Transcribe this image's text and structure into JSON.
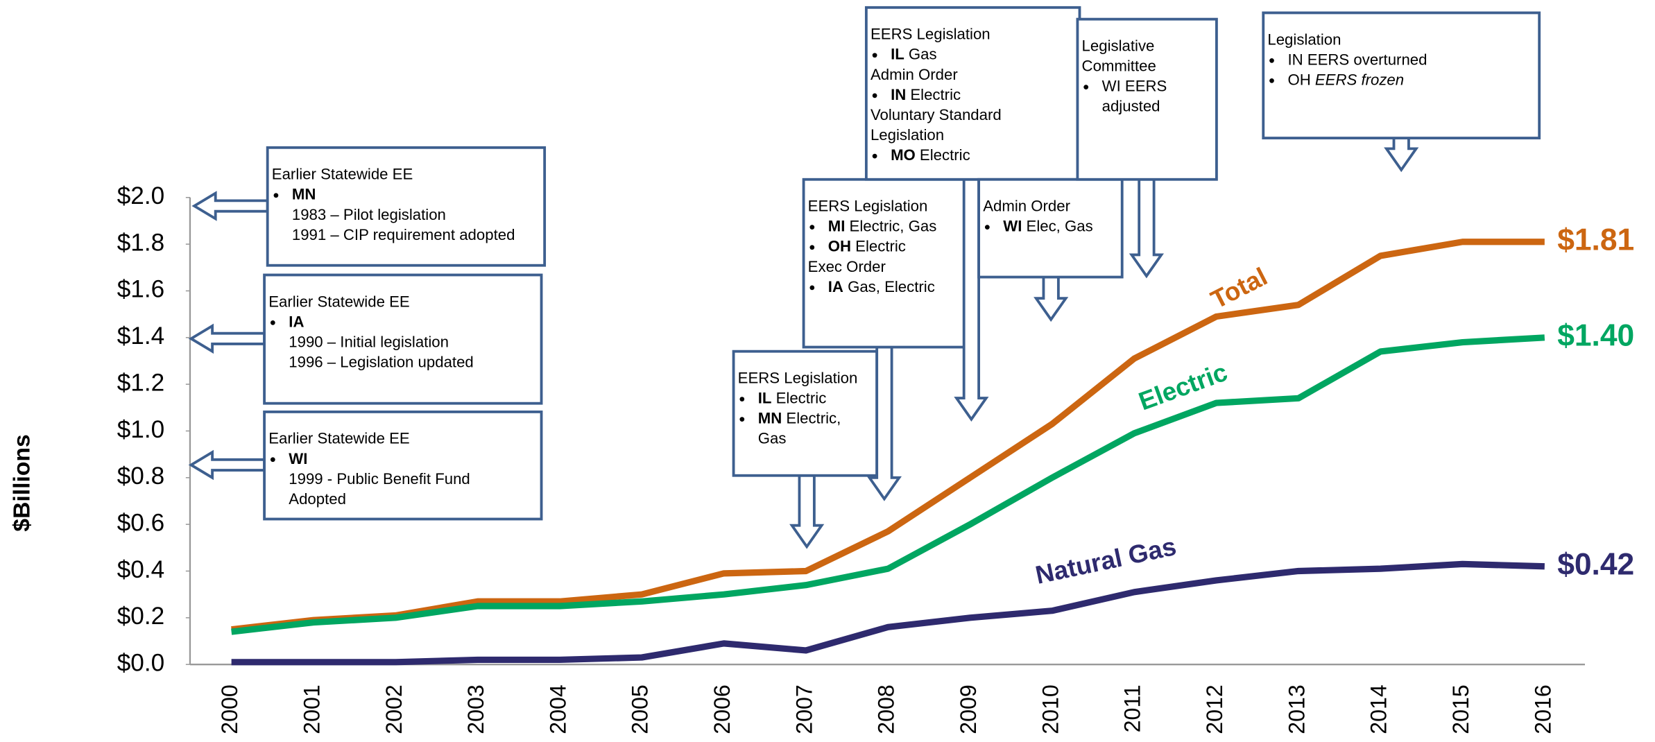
{
  "chart_data": {
    "type": "line",
    "y_label": "$Billions",
    "categories": [
      "2000",
      "2001",
      "2002",
      "2003",
      "2004",
      "2005",
      "2006",
      "2007",
      "2008",
      "2009",
      "2010",
      "2011",
      "2012",
      "2013",
      "2014",
      "2015",
      "2016"
    ],
    "ylim": [
      0,
      2.0
    ],
    "yticks": [
      {
        "value": 0,
        "label": "$0.0"
      },
      {
        "value": 0.2,
        "label": "$0.2"
      },
      {
        "value": 0.4,
        "label": "$0.4"
      },
      {
        "value": 0.6,
        "label": "$0.6"
      },
      {
        "value": 0.8,
        "label": "$0.8"
      },
      {
        "value": 1.0,
        "label": "$1.0"
      },
      {
        "value": 1.2,
        "label": "$1.2"
      },
      {
        "value": 1.4,
        "label": "$1.4"
      },
      {
        "value": 1.6,
        "label": "$1.6"
      },
      {
        "value": 1.8,
        "label": "$1.8"
      },
      {
        "value": 2.0,
        "label": "$2.0"
      }
    ],
    "grid": false,
    "series": [
      {
        "name": "Total",
        "color": "#cc6611",
        "values": [
          0.15,
          0.19,
          0.21,
          0.27,
          0.27,
          0.3,
          0.39,
          0.4,
          0.57,
          0.8,
          1.03,
          1.31,
          1.49,
          1.54,
          1.75,
          1.81,
          1.81
        ],
        "value_labels": [
          null,
          null,
          null,
          null,
          null,
          null,
          null,
          null,
          null,
          null,
          null,
          null,
          null,
          null,
          null,
          null,
          "$1.81"
        ]
      },
      {
        "name": "Electric",
        "color": "#00a661",
        "values": [
          0.14,
          0.18,
          0.2,
          0.25,
          0.25,
          0.27,
          0.3,
          0.34,
          0.41,
          0.6,
          0.8,
          0.99,
          1.12,
          1.14,
          1.34,
          1.38,
          1.4
        ],
        "value_labels": [
          null,
          null,
          null,
          null,
          null,
          null,
          null,
          null,
          null,
          null,
          null,
          null,
          null,
          null,
          null,
          null,
          "$1.40"
        ]
      },
      {
        "name": "Natural Gas",
        "color": "#2e2a6e",
        "values": [
          0.01,
          0.01,
          0.01,
          0.02,
          0.02,
          0.03,
          0.09,
          0.06,
          0.16,
          0.2,
          0.23,
          0.31,
          0.36,
          0.4,
          0.41,
          0.43,
          0.42
        ],
        "value_labels": [
          null,
          null,
          null,
          null,
          null,
          null,
          null,
          null,
          null,
          null,
          null,
          null,
          null,
          null,
          null,
          null,
          "$0.42"
        ]
      }
    ],
    "annotations": [
      {
        "lines": [
          {
            "text": "Earlier Statewide EE"
          },
          {
            "bullet": true,
            "bold": "MN"
          },
          {
            "indent": true,
            "text": "1983 – Pilot legislation"
          },
          {
            "indent": true,
            "text": "1991 – CIP requirement adopted"
          }
        ]
      },
      {
        "lines": [
          {
            "text": "Earlier Statewide EE"
          },
          {
            "bullet": true,
            "bold": "IA"
          },
          {
            "indent": true,
            "text": "1990 – Initial legislation"
          },
          {
            "indent": true,
            "text": "1996 – Legislation updated"
          }
        ]
      },
      {
        "lines": [
          {
            "text": "Earlier Statewide EE"
          },
          {
            "bullet": true,
            "bold": "WI"
          },
          {
            "indent": true,
            "text": "1999 - Public Benefit Fund"
          },
          {
            "indent": true,
            "text": "Adopted"
          }
        ]
      },
      {
        "lines": [
          {
            "text": "EERS Legislation"
          },
          {
            "bullet": true,
            "bold": "IL",
            "text": "Electric"
          },
          {
            "bullet": true,
            "bold": "MN",
            "text": "Electric,"
          },
          {
            "indent": true,
            "text": "Gas"
          }
        ]
      },
      {
        "lines": [
          {
            "text": "EERS Legislation"
          },
          {
            "bullet": true,
            "bold": "MI",
            "text": "Electric, Gas"
          },
          {
            "bullet": true,
            "bold": "OH",
            "text": "Electric"
          },
          {
            "text": "Exec Order"
          },
          {
            "bullet": true,
            "bold": "IA",
            "text": "Gas, Electric"
          }
        ]
      },
      {
        "lines": [
          {
            "text": "EERS Legislation"
          },
          {
            "bullet": true,
            "bold": "IL",
            "text": "Gas"
          },
          {
            "text": "Admin Order"
          },
          {
            "bullet": true,
            "bold": "IN",
            "text": "Electric"
          },
          {
            "text": "Voluntary Standard"
          },
          {
            "text": "Legislation"
          },
          {
            "bullet": true,
            "bold": "MO",
            "text": "Electric"
          }
        ]
      },
      {
        "lines": [
          {
            "text": "Admin Order"
          },
          {
            "bullet": true,
            "bold": "WI",
            "text": "Elec, Gas"
          }
        ]
      },
      {
        "lines": [
          {
            "text": "Legislative"
          },
          {
            "text": "Committee"
          },
          {
            "bullet": true,
            "text": "WI EERS"
          },
          {
            "indent": true,
            "text": "adjusted"
          }
        ]
      },
      {
        "lines": [
          {
            "text": "Legislation"
          },
          {
            "bullet": true,
            "text": "IN EERS overturned"
          },
          {
            "bullet": true,
            "text": "OH",
            "italic": "EERS frozen"
          }
        ]
      }
    ]
  }
}
